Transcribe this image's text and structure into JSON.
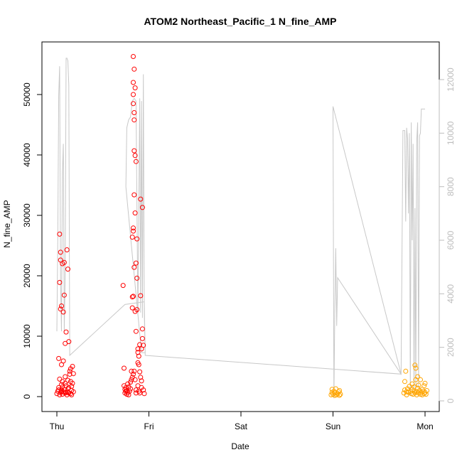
{
  "chart_data": {
    "type": "scatter",
    "title": "ATOM2 Northeast_Pacific_1 N_fine_AMP",
    "xlabel": "Date",
    "ylabel": "N_fine_AMP",
    "x_ticks": [
      "Thu",
      "Fri",
      "Sat",
      "Sun",
      "Mon"
    ],
    "xlim": [
      0,
      4.1
    ],
    "ylim": [
      0,
      57000
    ],
    "y_ticks": [
      0,
      10000,
      20000,
      30000,
      40000,
      50000
    ],
    "secondary_ylim": [
      0,
      13000
    ],
    "secondary_y_ticks": [
      0,
      2000,
      4000,
      6000,
      8000,
      10000,
      12000
    ],
    "colors": {
      "points_early": "#ff0000",
      "points_late": "#ffa500",
      "line": "#c8c8c8",
      "secondary_axis": "#bdbdbd"
    },
    "series": [
      {
        "points": [
          [
            0.0,
            500
          ],
          [
            0.01,
            900
          ],
          [
            0.02,
            1500
          ],
          [
            0.02,
            6300
          ],
          [
            0.03,
            300
          ],
          [
            0.03,
            2900
          ],
          [
            0.03,
            18900
          ],
          [
            0.03,
            26900
          ],
          [
            0.04,
            700
          ],
          [
            0.04,
            14500
          ],
          [
            0.04,
            22600
          ],
          [
            0.04,
            23900
          ],
          [
            0.05,
            1100
          ],
          [
            0.05,
            2000
          ],
          [
            0.05,
            5300
          ],
          [
            0.05,
            15000
          ],
          [
            0.06,
            400
          ],
          [
            0.06,
            1600
          ],
          [
            0.06,
            22000
          ],
          [
            0.07,
            800
          ],
          [
            0.07,
            5900
          ],
          [
            0.07,
            14000
          ],
          [
            0.08,
            1200
          ],
          [
            0.08,
            16800
          ],
          [
            0.08,
            22200
          ],
          [
            0.09,
            600
          ],
          [
            0.09,
            2200
          ],
          [
            0.09,
            8800
          ],
          [
            0.1,
            10700
          ],
          [
            0.1,
            1800
          ],
          [
            0.11,
            300
          ],
          [
            0.11,
            24300
          ],
          [
            0.12,
            700
          ],
          [
            0.12,
            2700
          ],
          [
            0.12,
            21100
          ],
          [
            0.13,
            9100
          ],
          [
            0.13,
            1500
          ],
          [
            0.14,
            3700
          ],
          [
            0.14,
            4200
          ],
          [
            0.15,
            500
          ],
          [
            0.15,
            2500
          ],
          [
            0.15,
            4600
          ],
          [
            0.16,
            1000
          ],
          [
            0.16,
            1700
          ],
          [
            0.17,
            5000
          ],
          [
            0.17,
            2200
          ],
          [
            0.18,
            3800
          ],
          [
            0.18,
            800
          ],
          [
            0.12,
            1300
          ],
          [
            0.06,
            2500
          ],
          [
            0.1,
            700
          ],
          [
            0.02,
            1100
          ],
          [
            0.16,
            300
          ],
          [
            0.09,
            3300
          ],
          [
            0.13,
            600
          ],
          [
            0.05,
            800
          ],
          [
            0.72,
            18400
          ],
          [
            0.73,
            1800
          ],
          [
            0.73,
            4700
          ],
          [
            0.74,
            600
          ],
          [
            0.74,
            1200
          ],
          [
            0.75,
            900
          ],
          [
            0.75,
            1500
          ],
          [
            0.76,
            400
          ],
          [
            0.76,
            1000
          ],
          [
            0.77,
            2100
          ],
          [
            0.77,
            700
          ],
          [
            0.78,
            300
          ],
          [
            0.78,
            1600
          ],
          [
            0.79,
            900
          ],
          [
            0.8,
            1300
          ],
          [
            0.8,
            2400
          ],
          [
            0.81,
            2800
          ],
          [
            0.81,
            4200
          ],
          [
            0.82,
            3200
          ],
          [
            0.82,
            14700
          ],
          [
            0.82,
            16500
          ],
          [
            0.82,
            26400
          ],
          [
            0.83,
            3700
          ],
          [
            0.83,
            16600
          ],
          [
            0.83,
            27400
          ],
          [
            0.83,
            27900
          ],
          [
            0.83,
            48500
          ],
          [
            0.83,
            50000
          ],
          [
            0.83,
            52000
          ],
          [
            0.83,
            56300
          ],
          [
            0.84,
            4200
          ],
          [
            0.84,
            21400
          ],
          [
            0.84,
            33400
          ],
          [
            0.84,
            40700
          ],
          [
            0.84,
            45800
          ],
          [
            0.84,
            47000
          ],
          [
            0.84,
            54200
          ],
          [
            0.85,
            2800
          ],
          [
            0.85,
            14100
          ],
          [
            0.85,
            30400
          ],
          [
            0.85,
            39900
          ],
          [
            0.85,
            51100
          ],
          [
            0.86,
            1100
          ],
          [
            0.86,
            10800
          ],
          [
            0.86,
            22100
          ],
          [
            0.86,
            38900
          ],
          [
            0.86,
            600
          ],
          [
            0.87,
            14400
          ],
          [
            0.87,
            19600
          ],
          [
            0.87,
            26100
          ],
          [
            0.88,
            1800
          ],
          [
            0.88,
            5600
          ],
          [
            0.88,
            7900
          ],
          [
            0.88,
            7300
          ],
          [
            0.89,
            6700
          ],
          [
            0.89,
            5300
          ],
          [
            0.89,
            900
          ],
          [
            0.9,
            4100
          ],
          [
            0.9,
            8600
          ],
          [
            0.9,
            600
          ],
          [
            0.91,
            3200
          ],
          [
            0.91,
            16700
          ],
          [
            0.91,
            32700
          ],
          [
            0.92,
            1500
          ],
          [
            0.92,
            2600
          ],
          [
            0.92,
            7900
          ],
          [
            0.93,
            9600
          ],
          [
            0.93,
            11200
          ],
          [
            0.93,
            31300
          ],
          [
            0.94,
            1100
          ],
          [
            0.94,
            8500
          ],
          [
            0.95,
            500
          ]
        ]
      },
      {
        "points": [
          [
            2.98,
            300
          ],
          [
            2.99,
            700
          ],
          [
            2.99,
            1200
          ],
          [
            3.0,
            400
          ],
          [
            3.01,
            900
          ],
          [
            3.02,
            200
          ],
          [
            3.02,
            600
          ],
          [
            3.03,
            1300
          ],
          [
            3.04,
            300
          ],
          [
            3.05,
            500
          ],
          [
            3.06,
            800
          ],
          [
            3.07,
            200
          ],
          [
            3.07,
            1000
          ],
          [
            3.08,
            400
          ],
          [
            3.77,
            600
          ],
          [
            3.78,
            1100
          ],
          [
            3.78,
            2500
          ],
          [
            3.79,
            4200
          ],
          [
            3.8,
            800
          ],
          [
            3.8,
            300
          ],
          [
            3.81,
            1300
          ],
          [
            3.82,
            700
          ],
          [
            3.83,
            1700
          ],
          [
            3.84,
            900
          ],
          [
            3.85,
            500
          ],
          [
            3.86,
            1200
          ],
          [
            3.86,
            2100
          ],
          [
            3.87,
            400
          ],
          [
            3.88,
            900
          ],
          [
            3.88,
            1600
          ],
          [
            3.89,
            5200
          ],
          [
            3.89,
            600
          ],
          [
            3.9,
            2800
          ],
          [
            3.9,
            4700
          ],
          [
            3.91,
            800
          ],
          [
            3.91,
            300
          ],
          [
            3.92,
            1400
          ],
          [
            3.92,
            3300
          ],
          [
            3.93,
            600
          ],
          [
            3.93,
            1900
          ],
          [
            3.94,
            1000
          ],
          [
            3.95,
            400
          ],
          [
            3.95,
            2800
          ],
          [
            3.96,
            700
          ],
          [
            3.97,
            1200
          ],
          [
            3.97,
            300
          ],
          [
            3.98,
            900
          ],
          [
            3.99,
            500
          ],
          [
            3.99,
            1800
          ],
          [
            4.0,
            700
          ],
          [
            4.0,
            2200
          ],
          [
            4.01,
            400
          ],
          [
            4.02,
            1000
          ]
        ]
      },
      {
        "axis": "secondary",
        "line": [
          [
            0.0,
            2600
          ],
          [
            0.01,
            6000
          ],
          [
            0.02,
            11400
          ],
          [
            0.03,
            12500
          ],
          [
            0.04,
            4500
          ],
          [
            0.05,
            2600
          ],
          [
            0.06,
            8500
          ],
          [
            0.07,
            9600
          ],
          [
            0.08,
            2600
          ],
          [
            0.09,
            4700
          ],
          [
            0.1,
            12800
          ],
          [
            0.11,
            12800
          ],
          [
            0.12,
            12700
          ],
          [
            0.13,
            11800
          ],
          [
            0.14,
            1700
          ],
          [
            0.74,
            3600
          ],
          [
            0.95,
            3700
          ],
          [
            0.96,
            1800
          ],
          [
            0.92,
            1800
          ],
          [
            0.75,
            8000
          ],
          [
            0.76,
            10200
          ],
          [
            0.78,
            10500
          ],
          [
            0.8,
            10600
          ],
          [
            0.82,
            11200
          ],
          [
            0.84,
            11300
          ],
          [
            0.86,
            11200
          ],
          [
            0.88,
            3200
          ],
          [
            0.9,
            11300
          ],
          [
            0.91,
            3300
          ],
          [
            0.92,
            11200
          ],
          [
            0.93,
            3100
          ],
          [
            0.94,
            12200
          ],
          [
            0.95,
            3300
          ],
          [
            0.96,
            1700
          ],
          [
            3.74,
            1000
          ],
          [
            3.0,
            11000
          ],
          [
            3.01,
            100
          ],
          [
            3.02,
            3500
          ],
          [
            3.03,
            5700
          ],
          [
            3.04,
            2800
          ],
          [
            3.05,
            4600
          ],
          [
            3.74,
            1000
          ],
          [
            3.76,
            10100
          ],
          [
            3.77,
            10100
          ],
          [
            3.78,
            10100
          ],
          [
            3.79,
            6700
          ],
          [
            3.8,
            10200
          ],
          [
            3.81,
            9800
          ],
          [
            3.82,
            7000
          ],
          [
            3.83,
            10000
          ],
          [
            3.84,
            200
          ],
          [
            3.85,
            10400
          ],
          [
            3.86,
            6000
          ],
          [
            3.87,
            9600
          ],
          [
            3.88,
            300
          ],
          [
            3.89,
            7200
          ],
          [
            3.9,
            400
          ],
          [
            3.91,
            9700
          ],
          [
            3.92,
            10400
          ],
          [
            3.93,
            500
          ],
          [
            3.94,
            9900
          ],
          [
            3.95,
            10000
          ],
          [
            3.96,
            10900
          ],
          [
            3.98,
            10900
          ],
          [
            4.0,
            10900
          ]
        ]
      }
    ]
  }
}
